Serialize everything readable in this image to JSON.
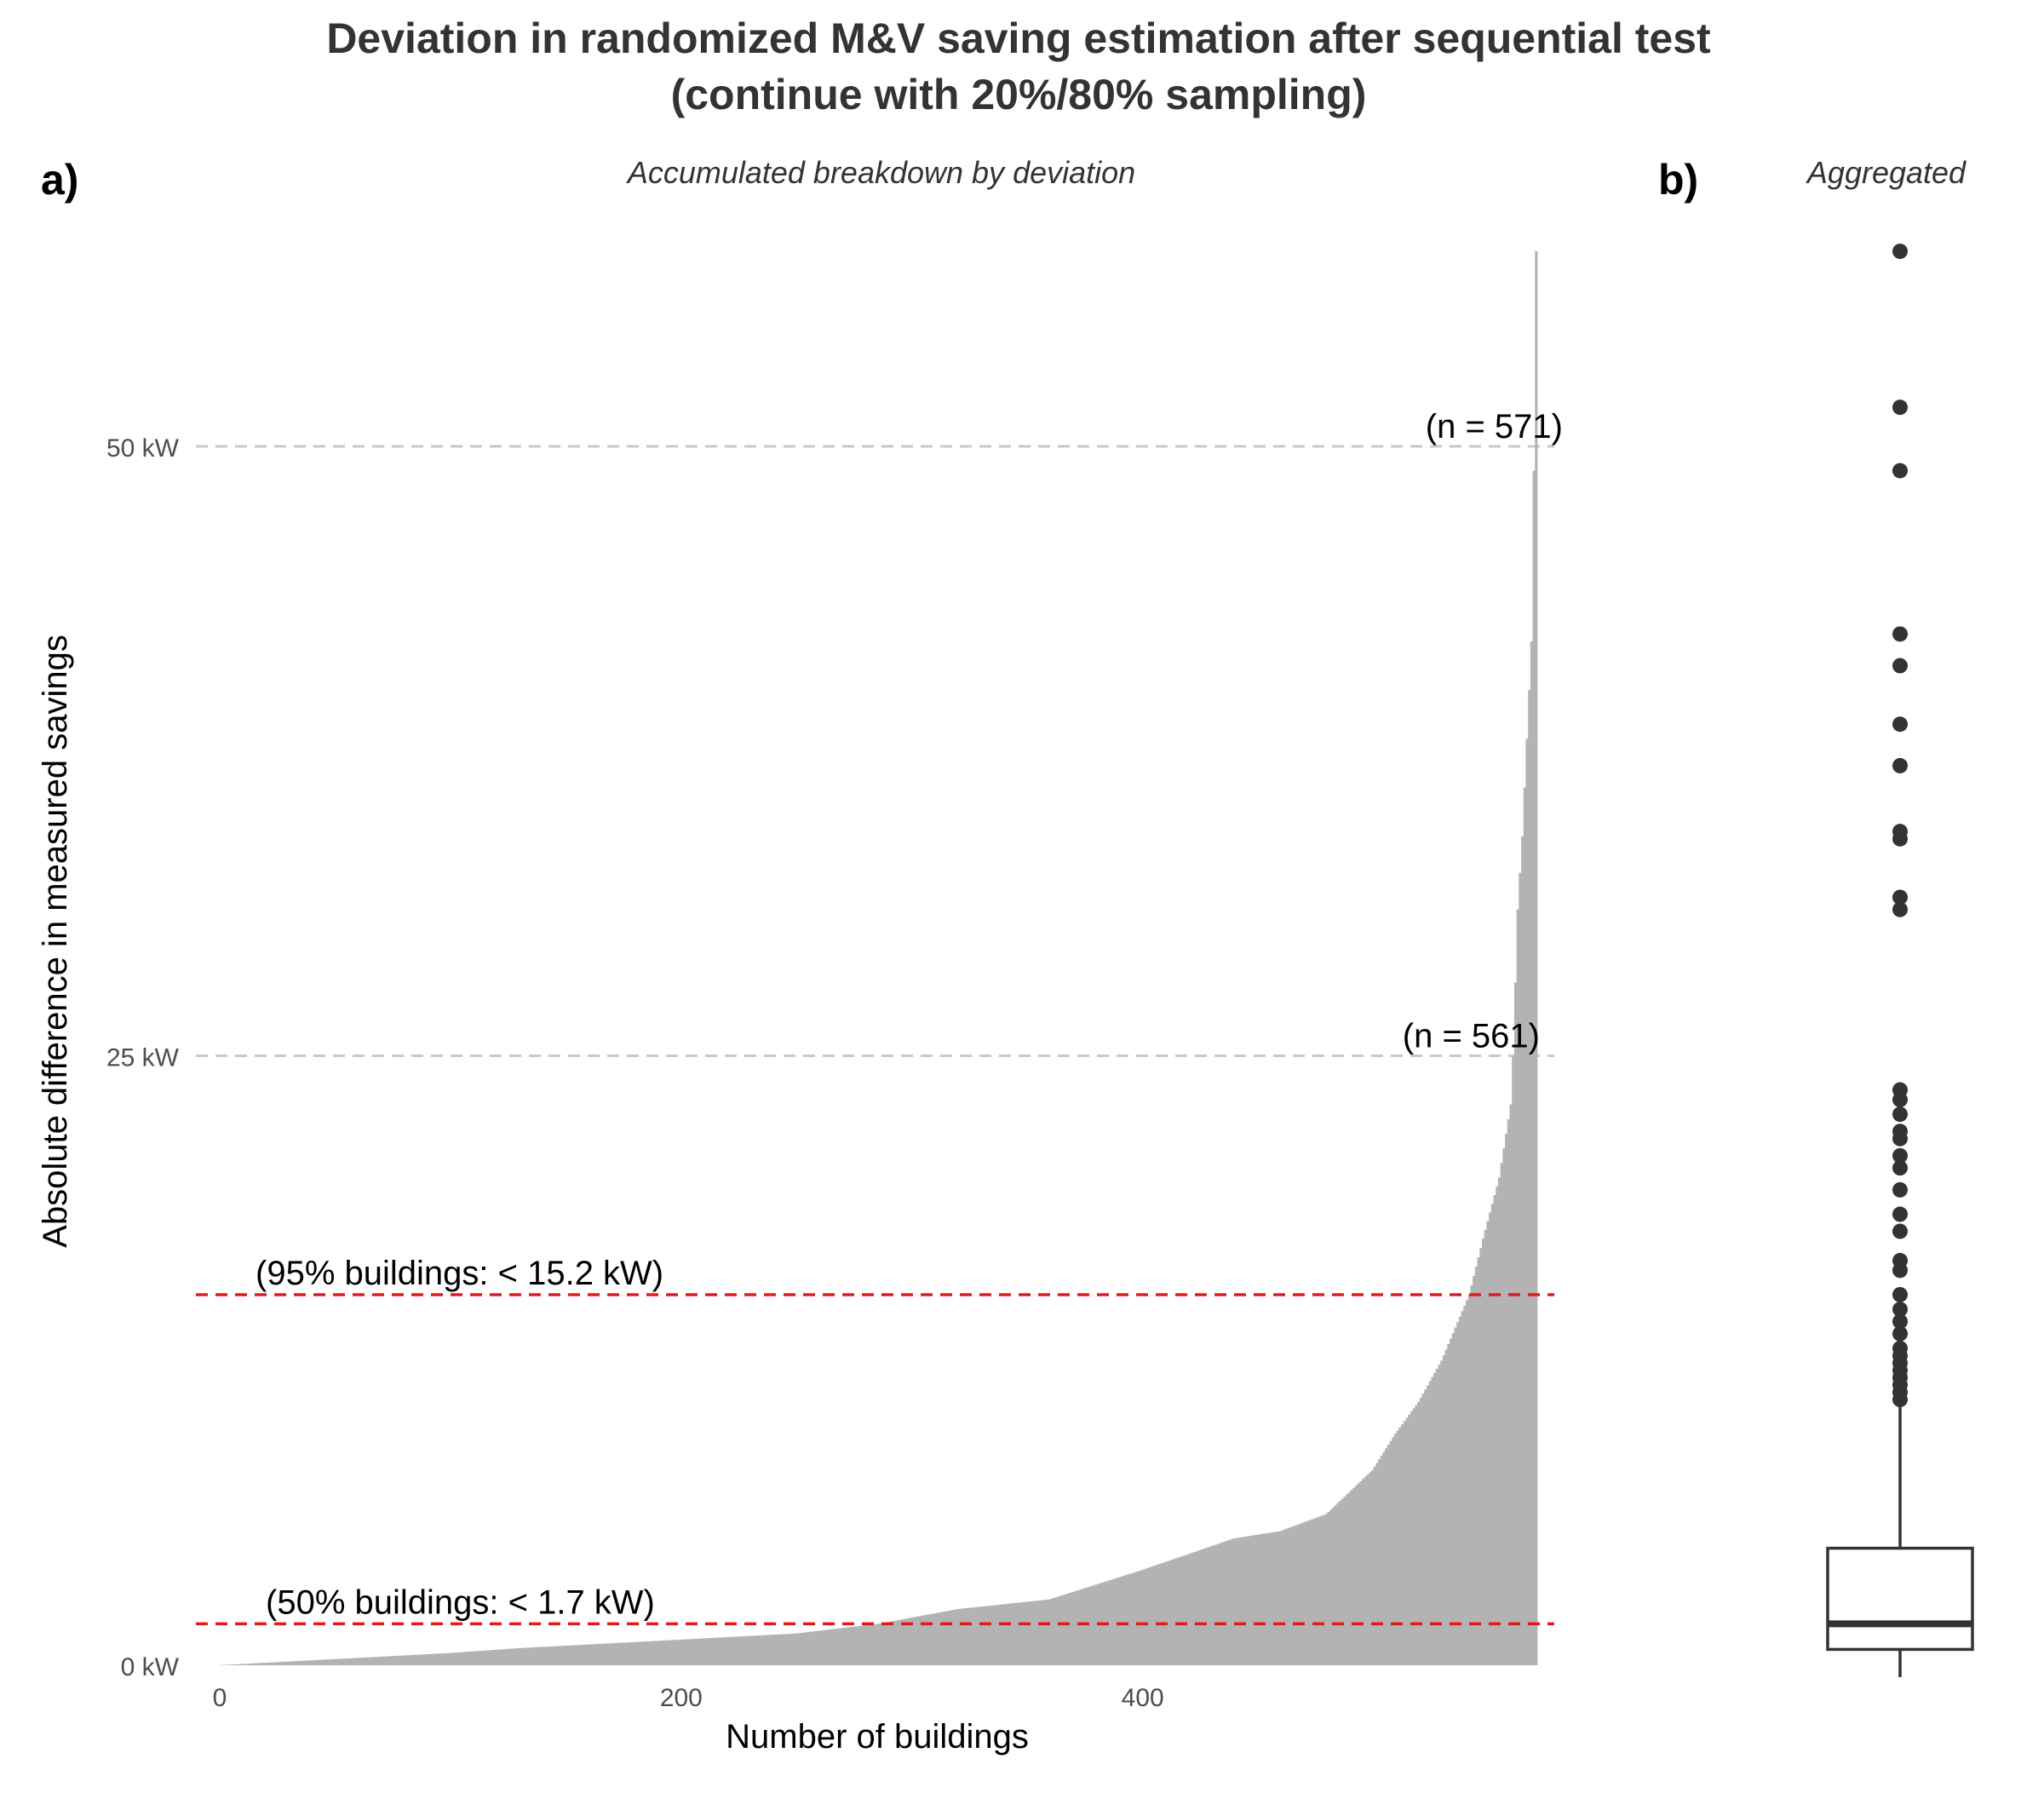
{
  "title_line1": "Deviation in randomized M&V saving estimation after sequential test",
  "title_line2": "(continue with 20%/80% sampling)",
  "colors": {
    "bar": "#b3b3b3",
    "reference": "#e31a1c",
    "grid": "#c8c8c8",
    "text": "#333333",
    "box": "#333333"
  },
  "chart_data": [
    {
      "type": "bar",
      "panel_label": "a)",
      "subtitle": "Accumulated breakdown by deviation",
      "xlabel": "Number of buildings",
      "ylabel": "Absolute difference in measured savings",
      "xlim": [
        0,
        571
      ],
      "ylim": [
        0,
        58
      ],
      "x_ticks": [
        0,
        200,
        400
      ],
      "y_ticks": [
        {
          "value": 0,
          "label": "0 kW"
        },
        {
          "value": 25,
          "label": "25 kW"
        },
        {
          "value": 50,
          "label": "50 kW"
        }
      ],
      "n_buildings": 571,
      "sorted_quantiles": [
        [
          0,
          0.0
        ],
        [
          30,
          0.15
        ],
        [
          60,
          0.3
        ],
        [
          100,
          0.5
        ],
        [
          130,
          0.7
        ],
        [
          160,
          0.85
        ],
        [
          200,
          1.05
        ],
        [
          250,
          1.3
        ],
        [
          286,
          1.7
        ],
        [
          320,
          2.3
        ],
        [
          360,
          2.7
        ],
        [
          400,
          3.9
        ],
        [
          440,
          5.2
        ],
        [
          460,
          5.5
        ],
        [
          480,
          6.2
        ],
        [
          500,
          8.0
        ],
        [
          510,
          9.5
        ],
        [
          520,
          10.8
        ],
        [
          530,
          12.5
        ],
        [
          542,
          15.2
        ],
        [
          548,
          17.5
        ],
        [
          555,
          20.0
        ],
        [
          560,
          23.0
        ],
        [
          561,
          25.0
        ],
        [
          563,
          31.0
        ],
        [
          565,
          34.0
        ],
        [
          567,
          38.0
        ],
        [
          569,
          42.0
        ],
        [
          570,
          49.0
        ],
        [
          571,
          58.0
        ]
      ],
      "reference_lines": [
        {
          "value": 15.2,
          "label": "(95% buildings: < 15.2 kW)"
        },
        {
          "value": 1.7,
          "label": "(50% buildings: < 1.7 kW)"
        }
      ],
      "count_annotations": [
        {
          "value": 50,
          "label": "(n = 571)"
        },
        {
          "value": 25,
          "label": "(n = 561)"
        }
      ],
      "grid": "dashed at 25 kW and 50 kW"
    },
    {
      "type": "box",
      "panel_label": "b)",
      "subtitle": "Aggregated",
      "ylim": [
        0,
        58
      ],
      "quartiles": {
        "min": 0.0,
        "q1": 0.65,
        "median": 1.7,
        "q3": 4.8,
        "whisker_high": 10.9
      },
      "outliers": [
        58,
        51.6,
        49.0,
        42.3,
        41.0,
        38.6,
        36.9,
        34.2,
        33.9,
        31.5,
        31.0,
        23.6,
        23.2,
        22.6,
        21.9,
        21.6,
        20.9,
        20.4,
        19.5,
        18.5,
        17.8,
        16.6,
        16.2,
        15.2,
        14.6,
        14.1,
        13.6,
        13.0,
        12.7,
        12.4,
        12.1,
        11.8,
        11.5,
        11.2,
        10.9
      ]
    }
  ]
}
